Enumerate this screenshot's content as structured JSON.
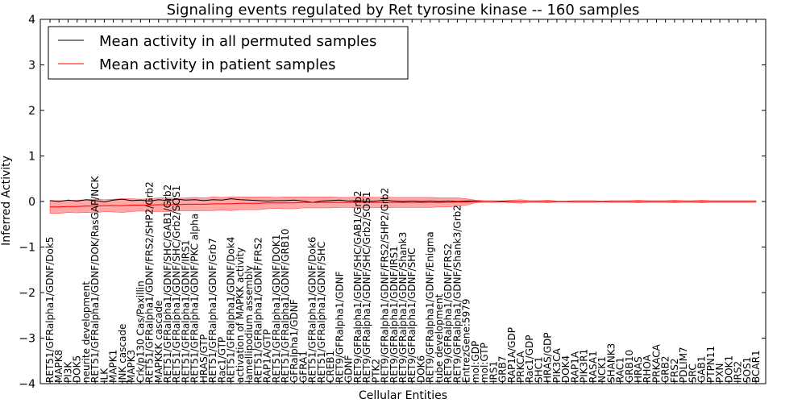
{
  "chart_data": {
    "type": "line",
    "title": "Signaling events regulated by Ret tyrosine kinase -- 160 samples",
    "xlabel": "Cellular Entities",
    "ylabel": "Inferred Activity",
    "ylim": [
      -4,
      4
    ],
    "yticks": [
      "−4",
      "−3",
      "−2",
      "−1",
      "0",
      "1",
      "2",
      "3",
      "4"
    ],
    "grid": false,
    "legend_position": "top-left",
    "categories": [
      "RET51/GFRalpha1/GDNF/Dok5",
      "MAPK8",
      "PI3K",
      "DOK5",
      "neurite development",
      "RET51/GFRalpha1/GDNF/DOK/RasGAP/NCK",
      "ILK",
      "MAPK1",
      "JNK cascade",
      "MAPK3",
      "Crk/p130 Cas/Paxillin",
      "RET51/GFRalpha1/GDNF/FRS2/SHP2/Grb2",
      "MAPKKK cascade",
      "RET51/GFRalpha1/GDNF/SHC/GAB1/Grb2",
      "RET51/GFRalpha1/GDNF/SHC/Grb2/SOS1",
      "RET51/GFRalpha1/GDNF/IRS1",
      "RET51/GFRalpha1/GDNF/PKC alpha",
      "HRAS/GTP",
      "RET51/GFRalpha1/GDNF/Grb7",
      "Rac1/GTP",
      "RET51/GFRalpha1/GDNF/Dok4",
      "activation of MAPKK activity",
      "lamellipodium assembly",
      "RET51/GFRalpha1/GDNF/FRS2",
      "RAP1A/GTP",
      "RET51/GFRalpha1/GDNF/DOK1",
      "RET51/GFRalpha1/GDNF/GRB10",
      "GFRalpha1/GDNF",
      "GFRA1",
      "RET51/GFRalpha1/GDNF/Dok6",
      "RET51/GFRalpha1/GDNF/SHC",
      "CREB1",
      "RET9/GFRalpha1/GDNF",
      "GDNF",
      "RET9/GFRalpha1/GDNF/SHC/GAB1/Grb2",
      "RET9/GFRalpha1/GDNF/SHC/Grb2/SOS1",
      "PTK2",
      "RET9/GFRalpha1/GDNF/FRS2/SHP2/Grb2",
      "RET9/GFRalpha1/GDNF/IRS1",
      "RET9/GFRalpha1/GDNF/Shank3",
      "RET9/GFRalpha1/GDNF/SHC",
      "DOK6",
      "RET9/GFRalpha1/GDNF/Enigma",
      "tube development",
      "RET9/GFRalpha1/GDNF/FRS2",
      "RET9/GFRalpha1/GDNF/Shank3/Grb2",
      "EntrezGene:5979",
      "mol:GDP",
      "mol:GTP",
      "IRS1",
      "GRB7",
      "RAP1A/GDP",
      "PRKCA",
      "Rac1/GDP",
      "SHC1",
      "HRAS/GDP",
      "PIK3CA",
      "DOK4",
      "RAP1A",
      "PIK3R1",
      "RASA1",
      "NCK1",
      "SHANK3",
      "RAC1",
      "GRB10",
      "HRAS",
      "RHOA",
      "PRKACA",
      "GRB2",
      "FRS2",
      "PDLIM7",
      "SRC",
      "GAB1",
      "PTPN11",
      "PXN",
      "DOK1",
      "IRS2",
      "SOS1",
      "BCAR1"
    ],
    "series": [
      {
        "name": "Mean activity in all permuted samples",
        "color": "#000000",
        "values": [
          0.02,
          0.0,
          0.03,
          0.01,
          0.04,
          0.02,
          -0.01,
          0.03,
          0.05,
          0.02,
          0.03,
          0.01,
          0.04,
          0.02,
          0.05,
          0.03,
          0.04,
          0.02,
          0.04,
          0.03,
          0.06,
          0.04,
          0.03,
          0.02,
          0.01,
          0.02,
          0.02,
          0.03,
          0.01,
          -0.02,
          0.01,
          0.02,
          0.03,
          0.01,
          0.02,
          0.0,
          0.01,
          0.03,
          0.01,
          0.0,
          0.01,
          0.0,
          0.01,
          0.0,
          0.01,
          0.0,
          0.01,
          0.01,
          0.0,
          0.0,
          0.01,
          0.0,
          0.0,
          0.0,
          0.0,
          0.0,
          0.0,
          0.0,
          0.0,
          0.0,
          0.0,
          0.0,
          0.0,
          0.0,
          0.0,
          0.0,
          0.0,
          0.0,
          0.0,
          0.0,
          0.0,
          0.0,
          0.0,
          0.0,
          0.0,
          0.0,
          0.0,
          0.0,
          0.0
        ]
      },
      {
        "name": "Mean activity in patient samples",
        "color": "#ff0000",
        "band_color": "#ff0000",
        "values": [
          -0.12,
          -0.12,
          -0.11,
          -0.11,
          -0.1,
          -0.1,
          -0.09,
          -0.09,
          -0.09,
          -0.08,
          -0.08,
          -0.08,
          -0.07,
          -0.07,
          -0.07,
          -0.06,
          -0.06,
          -0.06,
          -0.05,
          -0.05,
          -0.05,
          -0.04,
          -0.04,
          -0.04,
          -0.03,
          -0.03,
          -0.03,
          -0.03,
          -0.02,
          -0.02,
          -0.02,
          -0.02,
          -0.02,
          -0.02,
          -0.02,
          -0.02,
          -0.02,
          -0.02,
          -0.02,
          -0.02,
          -0.02,
          -0.02,
          -0.02,
          -0.02,
          -0.02,
          -0.01,
          -0.01,
          0.0,
          0.0,
          0.0,
          0.0,
          0.0,
          0.0,
          0.0,
          0.0,
          0.0,
          0.0,
          0.0,
          0.0,
          0.0,
          0.0,
          0.0,
          0.0,
          0.0,
          0.0,
          0.0,
          0.0,
          0.0,
          0.0,
          0.0,
          0.0,
          0.0,
          0.0,
          0.0,
          0.0,
          0.0,
          0.0,
          0.0,
          0.0
        ],
        "band_halfwidth": [
          0.14,
          0.14,
          0.13,
          0.14,
          0.14,
          0.15,
          0.13,
          0.14,
          0.15,
          0.14,
          0.13,
          0.14,
          0.15,
          0.15,
          0.14,
          0.14,
          0.15,
          0.14,
          0.15,
          0.14,
          0.15,
          0.14,
          0.14,
          0.14,
          0.13,
          0.12,
          0.13,
          0.13,
          0.12,
          0.12,
          0.12,
          0.12,
          0.11,
          0.11,
          0.12,
          0.12,
          0.11,
          0.12,
          0.11,
          0.11,
          0.11,
          0.11,
          0.11,
          0.1,
          0.1,
          0.09,
          0.07,
          0.03,
          0.02,
          0.02,
          0.01,
          0.03,
          0.04,
          0.02,
          0.02,
          0.03,
          0.01,
          0.01,
          0.02,
          0.02,
          0.02,
          0.01,
          0.02,
          0.02,
          0.02,
          0.03,
          0.02,
          0.02,
          0.02,
          0.03,
          0.02,
          0.02,
          0.03,
          0.02,
          0.02,
          0.02,
          0.02,
          0.02,
          0.02
        ]
      }
    ]
  }
}
